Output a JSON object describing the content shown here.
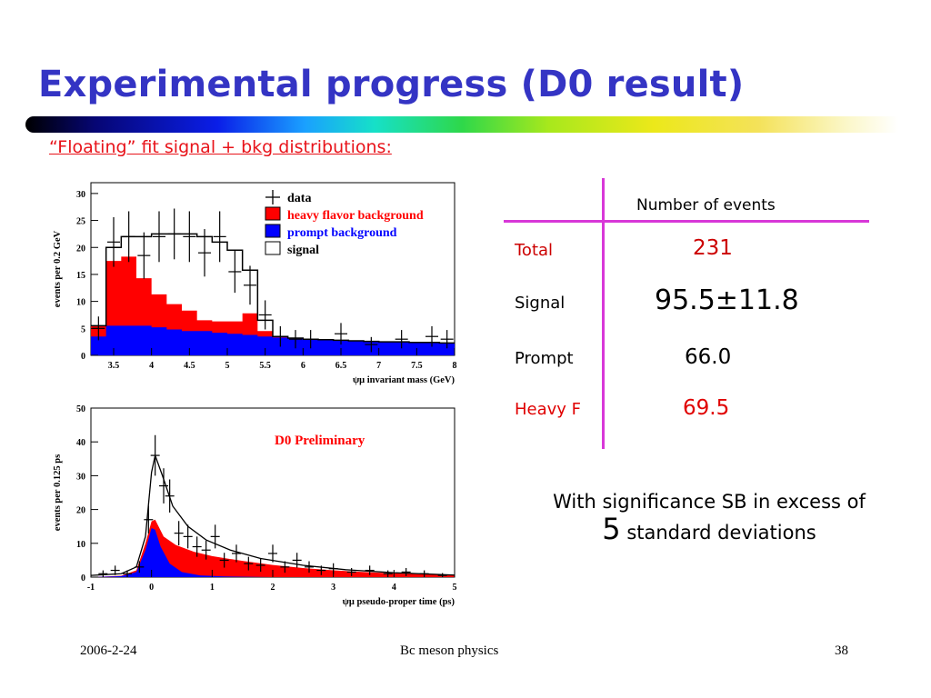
{
  "slide": {
    "title": "Experimental progress (D0 result)",
    "subtitle": "“Floating” fit signal + bkg distributions:"
  },
  "chart_data": [
    {
      "type": "histogram",
      "xlabel": "ψμ invariant mass (GeV)",
      "ylabel": "events per 0.2 GeV",
      "xlim": [
        3.2,
        8.0
      ],
      "ylim": [
        0,
        32
      ],
      "xticks": [
        "3.5",
        "4",
        "4.5",
        "5",
        "5.5",
        "6",
        "6.5",
        "7",
        "7.5",
        "8"
      ],
      "yticks": [
        "0",
        "5",
        "10",
        "15",
        "20",
        "25",
        "30"
      ],
      "legend": [
        "data",
        "heavy flavor background",
        "prompt background",
        "signal"
      ],
      "colors": {
        "heavy_flavor": "#ff0000",
        "prompt": "#0000ff",
        "signal": "#000000",
        "data": "#000000"
      },
      "bin_edges": [
        3.2,
        3.4,
        3.6,
        3.8,
        4.0,
        4.2,
        4.4,
        4.6,
        4.8,
        5.0,
        5.2,
        5.4,
        5.6,
        5.8,
        6.0,
        6.2,
        6.4,
        6.6,
        6.8,
        7.0,
        7.2,
        7.4,
        7.6,
        7.8,
        8.0
      ],
      "prompt_background": [
        3.5,
        5.5,
        5.5,
        5.5,
        5.2,
        4.8,
        4.5,
        4.5,
        4.2,
        4.0,
        3.8,
        3.5,
        3.3,
        3.2,
        3.0,
        2.9,
        2.8,
        2.7,
        2.6,
        2.5,
        2.5,
        2.4,
        2.4,
        2.3
      ],
      "heavy_flavor_total": [
        5.5,
        17.5,
        18.3,
        14.3,
        11.3,
        9.5,
        8.3,
        6.5,
        6.3,
        6.3,
        7.8,
        4.5,
        3.5,
        3.2,
        3.0,
        2.9,
        2.8,
        2.7,
        2.6,
        2.5,
        2.5,
        2.4,
        2.4,
        2.3
      ],
      "signal_total": [
        5.5,
        20.0,
        22.0,
        22.0,
        22.5,
        22.5,
        22.5,
        22.0,
        21.0,
        19.5,
        15.8,
        6.5,
        3.5,
        3.2,
        3.0,
        2.9,
        2.8,
        2.7,
        2.6,
        2.5,
        2.5,
        2.4,
        2.4,
        2.3
      ],
      "data_points": [
        {
          "x": 3.3,
          "y": 5.0,
          "err": 2.2
        },
        {
          "x": 3.5,
          "y": 21.0,
          "err": 4.6
        },
        {
          "x": 3.7,
          "y": 22.0,
          "err": 4.7
        },
        {
          "x": 3.9,
          "y": 18.5,
          "err": 4.3
        },
        {
          "x": 4.1,
          "y": 22.0,
          "err": 4.7
        },
        {
          "x": 4.3,
          "y": 22.5,
          "err": 4.7
        },
        {
          "x": 4.5,
          "y": 22.0,
          "err": 4.7
        },
        {
          "x": 4.7,
          "y": 19.0,
          "err": 4.4
        },
        {
          "x": 4.9,
          "y": 22.0,
          "err": 4.7
        },
        {
          "x": 5.1,
          "y": 15.5,
          "err": 3.9
        },
        {
          "x": 5.3,
          "y": 13.0,
          "err": 3.6
        },
        {
          "x": 5.5,
          "y": 7.5,
          "err": 2.7
        },
        {
          "x": 5.7,
          "y": 3.5,
          "err": 1.9
        },
        {
          "x": 5.9,
          "y": 3.0,
          "err": 1.7
        },
        {
          "x": 6.1,
          "y": 3.0,
          "err": 1.7
        },
        {
          "x": 6.5,
          "y": 4.0,
          "err": 2.0
        },
        {
          "x": 6.9,
          "y": 2.0,
          "err": 1.4
        },
        {
          "x": 7.3,
          "y": 3.0,
          "err": 1.7
        },
        {
          "x": 7.7,
          "y": 3.5,
          "err": 1.9
        },
        {
          "x": 7.9,
          "y": 3.0,
          "err": 1.7
        }
      ]
    },
    {
      "type": "area",
      "title": "D0 Preliminary",
      "xlabel": "ψμ pseudo-proper time (ps)",
      "ylabel": "events per 0.125 ps",
      "xlim": [
        -1.0,
        5.0
      ],
      "ylim": [
        0,
        50
      ],
      "xticks": [
        "-1",
        "0",
        "1",
        "2",
        "3",
        "4",
        "5"
      ],
      "yticks": [
        "0",
        "10",
        "20",
        "30",
        "40",
        "50"
      ],
      "colors": {
        "heavy_flavor": "#ff0000",
        "prompt": "#0000ff",
        "fit_line": "#000000",
        "annotation": "#ff0000"
      },
      "total_fit": [
        [
          -1.0,
          0.5
        ],
        [
          -0.5,
          1.0
        ],
        [
          -0.25,
          3.0
        ],
        [
          -0.1,
          12.0
        ],
        [
          0.0,
          31.0
        ],
        [
          0.06,
          36.0
        ],
        [
          0.18,
          30.0
        ],
        [
          0.35,
          21.0
        ],
        [
          0.6,
          15.0
        ],
        [
          0.9,
          11.0
        ],
        [
          1.3,
          8.0
        ],
        [
          1.8,
          5.5
        ],
        [
          2.5,
          3.5
        ],
        [
          3.2,
          2.2
        ],
        [
          4.0,
          1.3
        ],
        [
          5.0,
          0.6
        ]
      ],
      "prompt_band": [
        [
          -1.0,
          0.0
        ],
        [
          -0.5,
          0.3
        ],
        [
          -0.25,
          1.5
        ],
        [
          -0.1,
          8.0
        ],
        [
          0.0,
          14.5
        ],
        [
          0.06,
          14.0
        ],
        [
          0.15,
          9.0
        ],
        [
          0.3,
          4.0
        ],
        [
          0.5,
          1.5
        ],
        [
          0.8,
          0.5
        ],
        [
          1.2,
          0.2
        ],
        [
          2.0,
          0.0
        ],
        [
          5.0,
          0.0
        ]
      ],
      "heavy_flavor_top": [
        [
          -1.0,
          0.0
        ],
        [
          -0.5,
          0.4
        ],
        [
          -0.25,
          2.0
        ],
        [
          -0.1,
          10.0
        ],
        [
          0.0,
          16.5
        ],
        [
          0.06,
          17.0
        ],
        [
          0.2,
          12.0
        ],
        [
          0.4,
          9.5
        ],
        [
          0.7,
          7.5
        ],
        [
          1.0,
          6.2
        ],
        [
          1.5,
          4.8
        ],
        [
          2.0,
          3.6
        ],
        [
          2.5,
          2.7
        ],
        [
          3.0,
          2.0
        ],
        [
          3.5,
          1.5
        ],
        [
          4.0,
          1.1
        ],
        [
          4.5,
          0.8
        ],
        [
          5.0,
          0.5
        ]
      ],
      "data_points": [
        {
          "x": -0.8,
          "y": 1.0,
          "err": 1.0
        },
        {
          "x": -0.6,
          "y": 2.0,
          "err": 1.4
        },
        {
          "x": -0.4,
          "y": 1.0,
          "err": 1.0
        },
        {
          "x": -0.2,
          "y": 3.0,
          "err": 1.7
        },
        {
          "x": -0.05,
          "y": 17.0,
          "err": 4.1
        },
        {
          "x": 0.06,
          "y": 36.0,
          "err": 6.0
        },
        {
          "x": 0.2,
          "y": 27.0,
          "err": 5.2
        },
        {
          "x": 0.3,
          "y": 24.0,
          "err": 4.9
        },
        {
          "x": 0.45,
          "y": 13.0,
          "err": 3.6
        },
        {
          "x": 0.6,
          "y": 12.0,
          "err": 3.5
        },
        {
          "x": 0.75,
          "y": 9.0,
          "err": 3.0
        },
        {
          "x": 0.9,
          "y": 8.0,
          "err": 2.8
        },
        {
          "x": 1.05,
          "y": 12.0,
          "err": 3.5
        },
        {
          "x": 1.2,
          "y": 5.0,
          "err": 2.2
        },
        {
          "x": 1.4,
          "y": 7.0,
          "err": 2.6
        },
        {
          "x": 1.6,
          "y": 4.0,
          "err": 2.0
        },
        {
          "x": 1.8,
          "y": 3.5,
          "err": 1.9
        },
        {
          "x": 2.0,
          "y": 7.0,
          "err": 2.6
        },
        {
          "x": 2.2,
          "y": 3.0,
          "err": 1.7
        },
        {
          "x": 2.4,
          "y": 5.0,
          "err": 2.2
        },
        {
          "x": 2.6,
          "y": 3.0,
          "err": 1.7
        },
        {
          "x": 2.8,
          "y": 2.0,
          "err": 1.4
        },
        {
          "x": 3.0,
          "y": 2.5,
          "err": 1.6
        },
        {
          "x": 3.3,
          "y": 1.5,
          "err": 1.2
        },
        {
          "x": 3.6,
          "y": 2.0,
          "err": 1.4
        },
        {
          "x": 3.9,
          "y": 1.0,
          "err": 1.0
        },
        {
          "x": 4.2,
          "y": 1.5,
          "err": 1.2
        },
        {
          "x": 4.5,
          "y": 1.0,
          "err": 1.0
        },
        {
          "x": 4.8,
          "y": 0.5,
          "err": 0.7
        }
      ]
    }
  ],
  "table": {
    "header": "Number of events",
    "rows": [
      {
        "label": "Total",
        "value": "231",
        "color": "#cc0000"
      },
      {
        "label": "Signal",
        "value": "95.5±11.8",
        "color": "#000000"
      },
      {
        "label": "Prompt",
        "value": "66.0",
        "color": "#000000"
      },
      {
        "label": "Heavy F",
        "value": "69.5",
        "color": "#e00000"
      }
    ]
  },
  "significance": {
    "line1": "With significance SB in excess of",
    "number": "5",
    "line2": "standard deviations"
  },
  "footer": {
    "date": "2006-2-24",
    "center": "Bc meson physics",
    "page": "38"
  }
}
